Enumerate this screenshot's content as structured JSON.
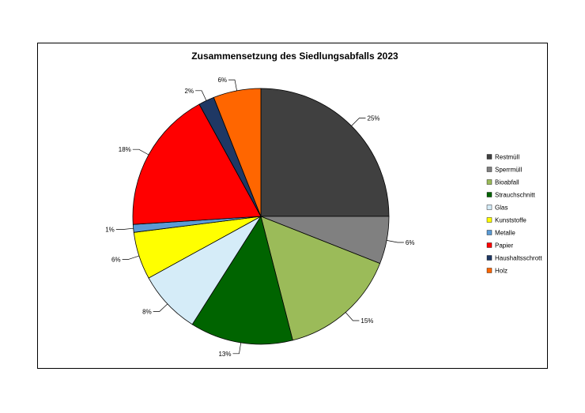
{
  "chart_data": {
    "type": "pie",
    "title": "Zusammensetzung des Siedlungsabfalls 2023",
    "legend_position": "right",
    "slices": [
      {
        "label": "Restmüll",
        "value": 25,
        "display": "25%",
        "color": "#404040"
      },
      {
        "label": "Sperrmüll",
        "value": 6,
        "display": "6%",
        "color": "#808080"
      },
      {
        "label": "Bioabfall",
        "value": 15,
        "display": "15%",
        "color": "#9BBB59"
      },
      {
        "label": "Strauchschnitt",
        "value": 13,
        "display": "13%",
        "color": "#006400"
      },
      {
        "label": "Glas",
        "value": 8,
        "display": "8%",
        "color": "#D5ECF8"
      },
      {
        "label": "Kunststoffe",
        "value": 6,
        "display": "6%",
        "color": "#FFFF00"
      },
      {
        "label": "Metalle",
        "value": 1,
        "display": "1%",
        "color": "#5B9BD5"
      },
      {
        "label": "Papier",
        "value": 18,
        "display": "18%",
        "color": "#FF0000"
      },
      {
        "label": "Haushaltsschrott",
        "value": 2,
        "display": "2%",
        "color": "#1F3864"
      },
      {
        "label": "Holz",
        "value": 6,
        "display": "6%",
        "color": "#FF6600"
      }
    ]
  }
}
